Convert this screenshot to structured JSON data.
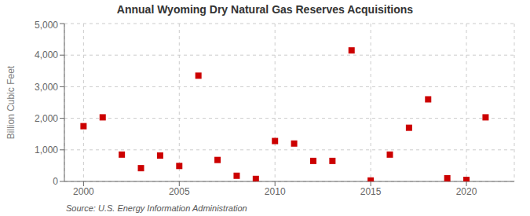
{
  "chart_data": {
    "type": "scatter",
    "title": "Annual Wyoming Dry Natural Gas Reserves Acquisitions",
    "ylabel": "Billion Cubic Feet",
    "annotations": [
      "Source: U.S. Energy Information Administration"
    ],
    "x": [
      2000,
      2001,
      2002,
      2003,
      2004,
      2005,
      2006,
      2007,
      2008,
      2009,
      2010,
      2011,
      2012,
      2013,
      2014,
      2015,
      2016,
      2017,
      2018,
      2019,
      2020,
      2021
    ],
    "values": [
      1750,
      2030,
      850,
      420,
      820,
      490,
      3350,
      680,
      180,
      80,
      1280,
      1200,
      650,
      650,
      4150,
      30,
      850,
      1700,
      2600,
      100,
      50,
      2030
    ],
    "color": "#cc0000",
    "marker": "square",
    "xlim": [
      1999,
      2022.5
    ],
    "xticks": [
      2000,
      2005,
      2010,
      2015,
      2020
    ],
    "ylim": [
      0,
      5000
    ],
    "yticks": [
      0,
      {
        "value": 1000,
        "label": "1,000"
      },
      {
        "value": 2000,
        "label": "2,000"
      },
      {
        "value": 3000,
        "label": "3,000"
      },
      {
        "value": 4000,
        "label": "4,000"
      },
      {
        "value": 5000,
        "label": "5,000"
      }
    ],
    "grid": true
  }
}
